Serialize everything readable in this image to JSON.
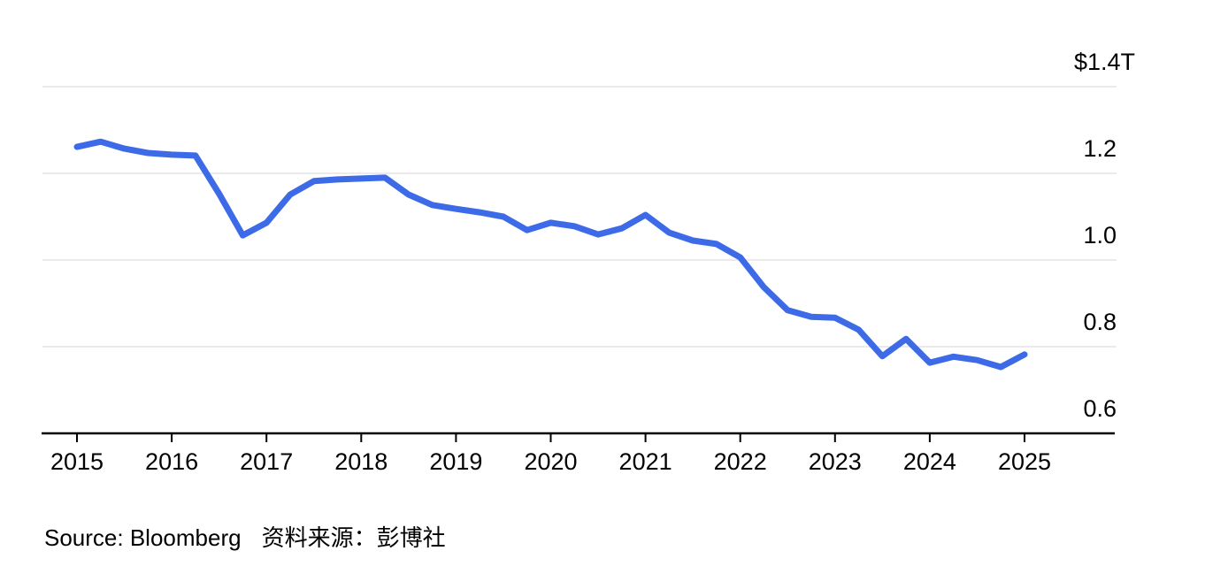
{
  "footer": {
    "source_en": "Source: Bloomberg",
    "source_zh": "资料来源：彭博社"
  },
  "colors": {
    "line": "#3D6BE8",
    "grid": "#EBEBEB",
    "axis": "#000000",
    "text": "#000000",
    "background": "#FFFFFF"
  },
  "chart_data": {
    "type": "line",
    "title": "",
    "legend": "none",
    "grid": "horizontal",
    "ylim": [
      0.6,
      1.4
    ],
    "xlim": [
      2015,
      2025
    ],
    "series_color": "#3D6BE8",
    "yticks": [
      {
        "value": 1.4,
        "label": "$1.4T"
      },
      {
        "value": 1.2,
        "label": "1.2"
      },
      {
        "value": 1.0,
        "label": "1.0"
      },
      {
        "value": 0.8,
        "label": "0.8"
      },
      {
        "value": 0.6,
        "label": "0.6"
      }
    ],
    "xticks": [
      {
        "value": 2015,
        "label": "2015"
      },
      {
        "value": 2016,
        "label": "2016"
      },
      {
        "value": 2017,
        "label": "2017"
      },
      {
        "value": 2018,
        "label": "2018"
      },
      {
        "value": 2019,
        "label": "2019"
      },
      {
        "value": 2020,
        "label": "2020"
      },
      {
        "value": 2021,
        "label": "2021"
      },
      {
        "value": 2022,
        "label": "2022"
      },
      {
        "value": 2023,
        "label": "2023"
      },
      {
        "value": 2024,
        "label": "2024"
      },
      {
        "value": 2025,
        "label": "2025"
      }
    ],
    "x": [
      2015.0,
      2015.25,
      2015.5,
      2015.75,
      2016.0,
      2016.25,
      2016.5,
      2016.75,
      2017.0,
      2017.25,
      2017.5,
      2017.75,
      2018.0,
      2018.25,
      2018.5,
      2018.75,
      2019.0,
      2019.25,
      2019.5,
      2019.75,
      2020.0,
      2020.25,
      2020.5,
      2020.75,
      2021.0,
      2021.25,
      2021.5,
      2021.75,
      2022.0,
      2022.25,
      2022.5,
      2022.75,
      2023.0,
      2023.25,
      2023.5,
      2023.75,
      2024.0,
      2024.25,
      2024.5,
      2024.75,
      2025.0
    ],
    "values": [
      1.261,
      1.273,
      1.257,
      1.247,
      1.243,
      1.241,
      1.153,
      1.057,
      1.086,
      1.151,
      1.182,
      1.186,
      1.188,
      1.19,
      1.151,
      1.127,
      1.118,
      1.11,
      1.1,
      1.069,
      1.086,
      1.078,
      1.059,
      1.073,
      1.104,
      1.063,
      1.045,
      1.037,
      1.006,
      0.937,
      0.884,
      0.869,
      0.867,
      0.839,
      0.778,
      0.818,
      0.763,
      0.777,
      0.769,
      0.753,
      0.782
    ]
  }
}
